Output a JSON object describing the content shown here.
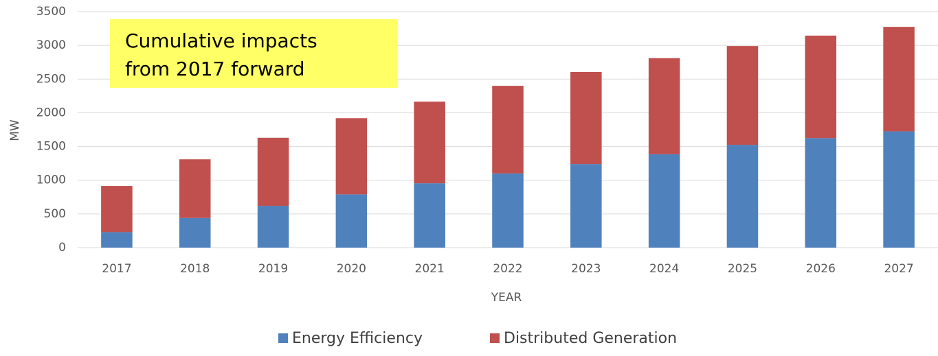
{
  "chart_data": {
    "type": "stacked_bar",
    "annotation": [
      "Cumulative impacts",
      "from 2017 forward"
    ],
    "x_label": "YEAR",
    "y_label": "MW",
    "categories": [
      "2017",
      "2018",
      "2019",
      "2020",
      "2021",
      "2022",
      "2023",
      "2024",
      "2025",
      "2026",
      "2027"
    ],
    "series": [
      {
        "name": "Energy Efficiency",
        "color": "#4f81bd",
        "values": [
          230,
          440,
          620,
          790,
          955,
          1100,
          1240,
          1385,
          1525,
          1625,
          1725
        ]
      },
      {
        "name": "Distributed Generation",
        "color": "#c0504d",
        "values": [
          685,
          870,
          1010,
          1130,
          1210,
          1300,
          1365,
          1425,
          1465,
          1520,
          1550
        ]
      }
    ],
    "ylim": [
      0,
      3500
    ],
    "yticks": [
      0,
      500,
      1000,
      1500,
      2000,
      2500,
      3000,
      3500
    ],
    "grid": true,
    "legend": "bottom"
  }
}
